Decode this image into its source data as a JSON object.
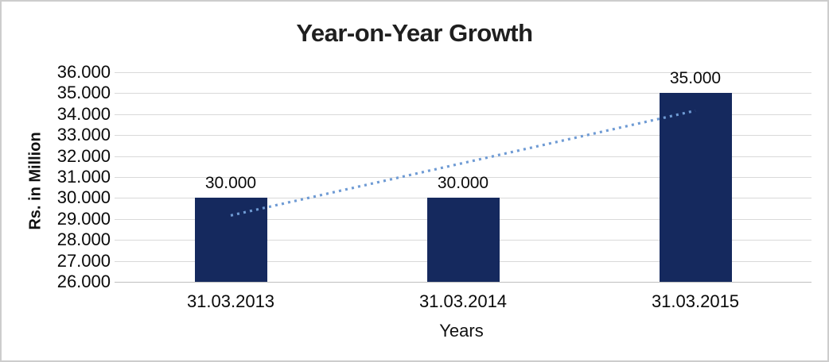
{
  "chart_data": {
    "type": "bar",
    "title": "Year-on-Year Growth",
    "xlabel": "Years",
    "ylabel": "Rs. in Million",
    "categories": [
      "31.03.2013",
      "31.03.2014",
      "31.03.2015"
    ],
    "values": [
      30,
      30,
      35
    ],
    "data_labels": [
      "30.000",
      "30.000",
      "35.000"
    ],
    "y_ticks": [
      "36.000",
      "35.000",
      "34.000",
      "33.000",
      "32.000",
      "31.000",
      "30.000",
      "29.000",
      "28.000",
      "27.000",
      "26.000"
    ],
    "ylim": [
      26,
      36
    ],
    "grid": true,
    "legend": "none",
    "colors": {
      "bar": "#15295e",
      "gridline": "#d9d9d9",
      "axis_line": "#bfbfbf",
      "trendline": "#6f9bd4",
      "text": "#0a0a0a",
      "frame_border": "#cdcdcd",
      "background": "#ffffff"
    },
    "trendline": {
      "type": "linear",
      "style": "dotted",
      "endpoint_values": [
        29.167,
        34.167
      ]
    }
  }
}
